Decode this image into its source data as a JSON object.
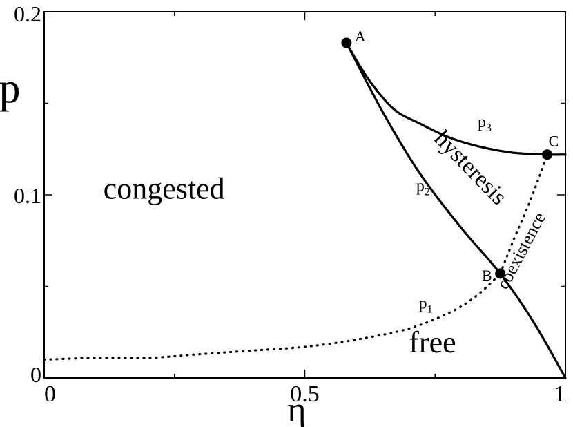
{
  "chart_data": {
    "type": "line",
    "title": "",
    "xlabel": "η",
    "ylabel": "p",
    "xlim": [
      0,
      1
    ],
    "ylim": [
      0,
      0.2
    ],
    "grid": false,
    "x_ticks": [
      {
        "value": 0,
        "label": "0"
      },
      {
        "value": 0.5,
        "label": "0.5"
      },
      {
        "value": 1,
        "label": "1"
      }
    ],
    "y_ticks": [
      {
        "value": 0,
        "label": "0"
      },
      {
        "value": 0.1,
        "label": "0.1"
      },
      {
        "value": 0.2,
        "label": "0.2"
      }
    ],
    "minor_x_ticks": [
      0.25,
      0.75
    ],
    "minor_y_ticks": [
      0.05,
      0.15
    ],
    "series": [
      {
        "name": "p2",
        "style": "solid",
        "x": [
          0.58,
          0.65,
          0.72,
          0.8,
          0.875,
          0.94,
          1.0
        ],
        "y": [
          0.183,
          0.145,
          0.112,
          0.082,
          0.057,
          0.03,
          0.0
        ]
      },
      {
        "name": "p3",
        "style": "solid",
        "x": [
          0.58,
          0.62,
          0.67,
          0.72,
          0.78,
          0.84,
          0.9,
          0.965,
          1.0
        ],
        "y": [
          0.183,
          0.164,
          0.147,
          0.139,
          0.131,
          0.126,
          0.123,
          0.122,
          0.122
        ]
      },
      {
        "name": "p1",
        "style": "dotted",
        "x": [
          0.0,
          0.1,
          0.2,
          0.3,
          0.4,
          0.5,
          0.6,
          0.7,
          0.78,
          0.83,
          0.875
        ],
        "y": [
          0.01,
          0.011,
          0.011,
          0.013,
          0.015,
          0.017,
          0.021,
          0.027,
          0.036,
          0.045,
          0.057
        ]
      },
      {
        "name": "coexistence-boundary",
        "style": "dotted",
        "x": [
          0.875,
          0.9,
          0.93,
          0.95,
          0.965
        ],
        "y": [
          0.057,
          0.075,
          0.095,
          0.11,
          0.122
        ]
      }
    ],
    "points": [
      {
        "label": "A",
        "x": 0.58,
        "y": 0.183
      },
      {
        "label": "B",
        "x": 0.875,
        "y": 0.057
      },
      {
        "label": "C",
        "x": 0.965,
        "y": 0.122
      }
    ],
    "annotations": [
      {
        "text": "congested",
        "x": 0.23,
        "y": 0.098,
        "size": "large",
        "rotate": 0
      },
      {
        "text": "free",
        "x": 0.745,
        "y": 0.014,
        "size": "large",
        "rotate": 0
      },
      {
        "text": "hysteresis",
        "x": 0.808,
        "y": 0.112,
        "size": "medium",
        "rotate": 46
      },
      {
        "text": "coexistence",
        "x": 0.925,
        "y": 0.068,
        "size": "small",
        "rotate": -62
      },
      {
        "text": "p",
        "sub": "1",
        "x": 0.732,
        "y": 0.038,
        "size": "small",
        "rotate": 0
      },
      {
        "text": "p",
        "sub": "2",
        "x": 0.727,
        "y": 0.102,
        "size": "small",
        "rotate": 0
      },
      {
        "text": "p",
        "sub": "3",
        "x": 0.845,
        "y": 0.137,
        "size": "small",
        "rotate": 0
      }
    ]
  }
}
